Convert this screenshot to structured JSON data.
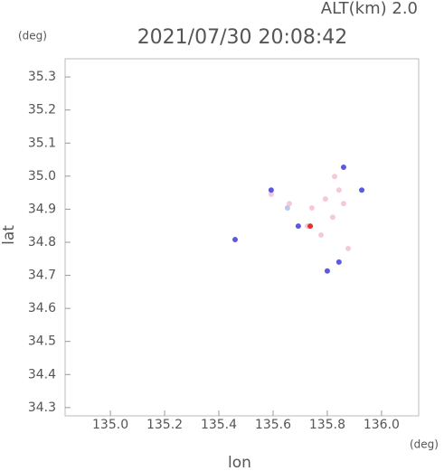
{
  "chart_data": {
    "type": "scatter",
    "title": "2021/07/30 20:08:42",
    "subtitle": "ALT(km) 2.0",
    "y_unit": "(deg)",
    "x_unit": "(deg)",
    "ylabel": "lat",
    "xlabel": "lon",
    "xlim": [
      134.833,
      136.137
    ],
    "ylim": [
      34.275,
      35.355
    ],
    "xticks": [
      {
        "value": 135,
        "label": "135.0"
      },
      135.2,
      135.4,
      135.6,
      135.8,
      {
        "value": 136,
        "label": "136.0"
      }
    ],
    "yticks": [
      34.3,
      34.4,
      34.5,
      34.6,
      34.7,
      34.8,
      34.9,
      {
        "value": 35,
        "label": "35.0"
      },
      35.1,
      35.2,
      35.3
    ],
    "series": [
      {
        "color": "#f6c9d8",
        "x": [
          135.827,
          135.843,
          135.793,
          135.743,
          135.66,
          135.593,
          135.86,
          135.82,
          135.777,
          135.877,
          135.727
        ],
        "values": [
          34.999,
          34.958,
          34.931,
          34.904,
          34.917,
          34.945,
          34.917,
          34.876,
          34.822,
          34.781,
          34.849
        ]
      },
      {
        "color": "#5a5ae0",
        "x": [
          135.927,
          135.46,
          135.593,
          135.693,
          135.843,
          135.8,
          135.86
        ],
        "values": [
          34.958,
          34.808,
          34.958,
          34.849,
          34.74,
          34.713,
          35.027
        ]
      },
      {
        "color": "#b8c8f0",
        "x": [
          135.653
        ],
        "values": [
          34.904
        ]
      },
      {
        "color": "#e03030",
        "x": [
          135.737
        ],
        "values": [
          34.849
        ]
      }
    ]
  }
}
